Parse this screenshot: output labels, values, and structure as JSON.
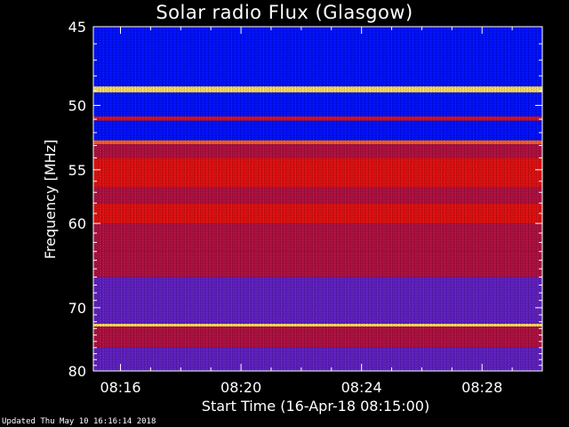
{
  "chart_data": {
    "type": "heatmap",
    "title": "Solar radio Flux (Glasgow)",
    "xlabel": "Start Time (16-Apr-18 08:15:00)",
    "ylabel": "Frequency [MHz]",
    "x_tick_labels": [
      "08:16",
      "08:20",
      "08:24",
      "08:28"
    ],
    "x_tick_minutes": [
      16,
      20,
      24,
      28
    ],
    "xlim_minutes": [
      15.1,
      30.0
    ],
    "y_ticks": [
      45,
      50,
      55,
      60,
      70,
      80
    ],
    "ylim": [
      45,
      80
    ],
    "y_scale": "reciprocal",
    "colormap": [
      "#00007a",
      "#0010ff",
      "#6020c0",
      "#b01040",
      "#e01010",
      "#ff6020",
      "#ffe060"
    ],
    "bands": [
      {
        "f_lo": 45.0,
        "f_hi": 48.7,
        "level": 1
      },
      {
        "f_lo": 48.7,
        "f_hi": 49.1,
        "level": 6
      },
      {
        "f_lo": 49.1,
        "f_hi": 50.8,
        "level": 1
      },
      {
        "f_lo": 50.8,
        "f_hi": 51.1,
        "level": 4
      },
      {
        "f_lo": 51.1,
        "f_hi": 52.6,
        "level": 1
      },
      {
        "f_lo": 52.6,
        "f_hi": 52.9,
        "level": 5
      },
      {
        "f_lo": 52.9,
        "f_hi": 54.0,
        "level": 3
      },
      {
        "f_lo": 54.0,
        "f_hi": 56.5,
        "level": 4
      },
      {
        "f_lo": 56.5,
        "f_hi": 58.0,
        "level": 3
      },
      {
        "f_lo": 58.0,
        "f_hi": 60.0,
        "level": 4
      },
      {
        "f_lo": 60.0,
        "f_hi": 63.0,
        "level": 3
      },
      {
        "f_lo": 63.0,
        "f_hi": 66.0,
        "level": 3
      },
      {
        "f_lo": 66.0,
        "f_hi": 72.3,
        "level": 2
      },
      {
        "f_lo": 72.3,
        "f_hi": 72.7,
        "level": 6
      },
      {
        "f_lo": 72.7,
        "f_hi": 76.0,
        "level": 3
      },
      {
        "f_lo": 76.0,
        "f_hi": 80.0,
        "level": 2
      }
    ],
    "grid": false
  },
  "footer": {
    "updated": "Updated Thu May 10 16:16:14 2018"
  }
}
